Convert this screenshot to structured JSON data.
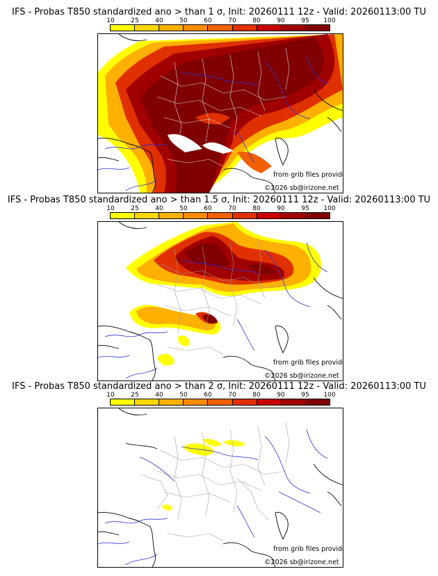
{
  "legend": {
    "labels": [
      "10",
      "25",
      "40",
      "50",
      "60",
      "70",
      "80",
      "90",
      "95",
      "100"
    ],
    "colors": [
      "#ffff00",
      "#ffd700",
      "#ffb000",
      "#ff8c00",
      "#f06000",
      "#e03000",
      "#c80000",
      "#a00000",
      "#800000",
      "#500000"
    ]
  },
  "panels": [
    {
      "title": "IFS - Probas T850  standardized ano > than 1 σ, Init: 20260111 12z - Valid: 20260113:00 TU",
      "credit_grib": "from grib files provided by ECMWF",
      "credit_copy": "©2026 sb@irizone.net"
    },
    {
      "title": "IFS - Probas T850  standardized ano > than 1.5 σ, Init: 20260111 12z - Valid: 20260113:00 TU",
      "credit_grib": "from grib files provided by ECMWF",
      "credit_copy": "©2026 sb@irizone.net"
    },
    {
      "title": "IFS - Probas T850  standardized ano > than 2 σ, Init: 20260111 12z - Valid: 20260113:00 TU",
      "credit_grib": "from grib files provided by ECMWF",
      "credit_copy": "©2026 sb@irizone.net"
    }
  ],
  "colors": {
    "coastline": "#000000",
    "rivers": "#3030d0",
    "admin_borders": "#a0a0a0",
    "dept_borders_on_fill": "#e0e0e0"
  }
}
